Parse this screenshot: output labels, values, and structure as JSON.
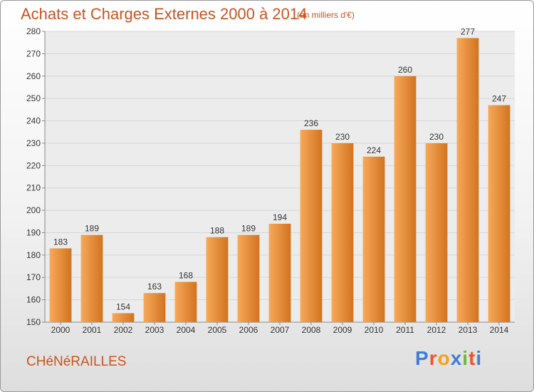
{
  "title": "Achats et Charges Externes 2000 à 2014",
  "subtitle": "(en milliers d'€)",
  "town": "CHéNéRAILLES",
  "brand": {
    "text": "Proxiti",
    "letter_colors": [
      "#3d7fd6",
      "#e8562a",
      "#f3a21b",
      "#3d7fd6",
      "#6fb53c",
      "#e8562a",
      "#3d7fd6"
    ]
  },
  "colors": {
    "title": "#c8541f",
    "bar_light": "#f7a95a",
    "bar_dark": "#d2731f",
    "grid": "#d6d6d6"
  },
  "chart_data": {
    "type": "bar",
    "title": "Achats et Charges Externes 2000 à 2014",
    "subtitle": "(en milliers d'€)",
    "categories": [
      "2000",
      "2001",
      "2002",
      "2003",
      "2004",
      "2005",
      "2006",
      "2007",
      "2008",
      "2009",
      "2010",
      "2011",
      "2012",
      "2013",
      "2014"
    ],
    "values": [
      183,
      189,
      154,
      163,
      168,
      188,
      189,
      194,
      236,
      230,
      224,
      260,
      230,
      277,
      247
    ],
    "ylim": [
      150,
      280
    ],
    "yticks": [
      150,
      160,
      170,
      180,
      190,
      200,
      210,
      220,
      230,
      240,
      250,
      260,
      270,
      280
    ],
    "grid": true,
    "legend": "none"
  }
}
